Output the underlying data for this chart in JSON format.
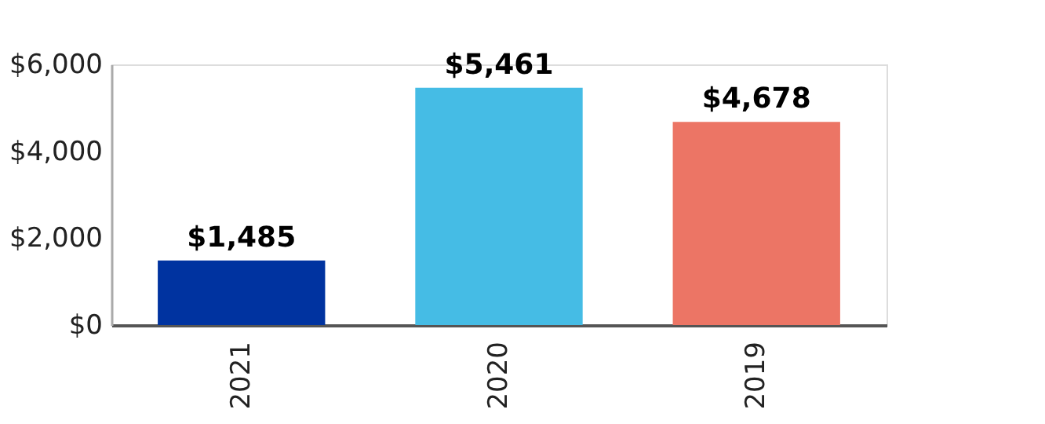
{
  "chart_data": {
    "type": "bar",
    "categories": [
      "2021",
      "2020",
      "2019"
    ],
    "values": [
      1485,
      5461,
      4678
    ],
    "colors": [
      "#0033a0",
      "#45bce5",
      "#ec7565"
    ],
    "value_labels": [
      "$1,485",
      "$5,461",
      "$4,678"
    ],
    "ylim": [
      0,
      6000
    ],
    "yticks": [
      {
        "value": 0,
        "label": "$0"
      },
      {
        "value": 2000,
        "label": "$2,000"
      },
      {
        "value": 4000,
        "label": "$4,000"
      },
      {
        "value": 6000,
        "label": "$6,000"
      }
    ],
    "grid": false,
    "legend": false
  }
}
